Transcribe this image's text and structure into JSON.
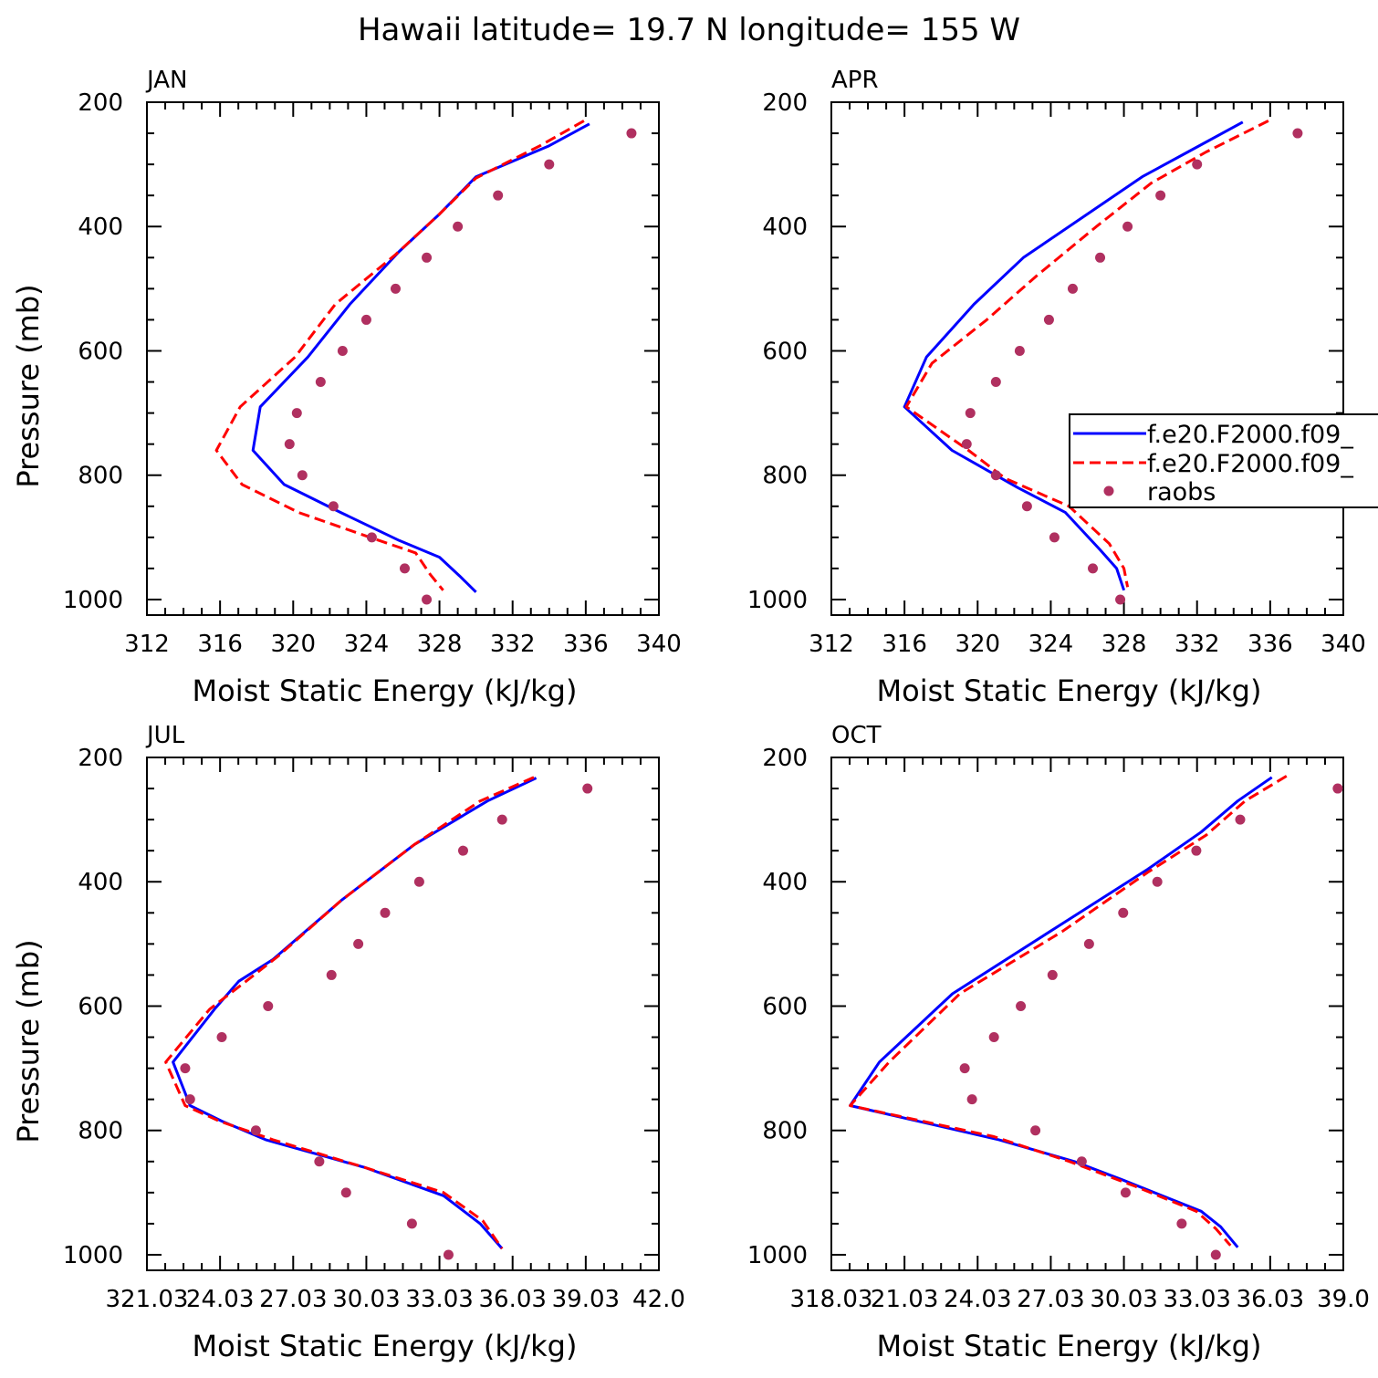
{
  "figure": {
    "title": "Hawaii  latitude= 19.7 N longitude= 155 W"
  },
  "legend": {
    "entries": [
      {
        "label": "f.e20.F2000.f09_",
        "style": "solid",
        "color": "#0000ff"
      },
      {
        "label": "f.e20.F2000.f09_",
        "style": "dashed",
        "color": "#ff0000"
      },
      {
        "label": "raobs",
        "style": "dot",
        "color": "#b03060"
      }
    ]
  },
  "chart_data": [
    {
      "type": "line",
      "title": "JAN",
      "xlabel": "Moist Static Energy (kJ/kg)",
      "ylabel": "Pressure (mb)",
      "xlim": [
        312,
        340
      ],
      "ylim": [
        1025,
        200
      ],
      "xticks": [
        "312",
        "316",
        "320",
        "324",
        "328",
        "332",
        "336",
        "340"
      ],
      "yticks": [
        "200",
        "400",
        "600",
        "800",
        "1000"
      ],
      "series": [
        {
          "name": "f.e20.F2000.f09_",
          "style": "solid",
          "color": "#0000ff",
          "x": [
            336.2,
            334.0,
            330.0,
            328.0,
            325.8,
            323.1,
            320.8,
            318.2,
            317.8,
            319.5,
            322.6,
            325.8,
            328.0,
            329.1,
            330.0
          ],
          "y": [
            235,
            270,
            320,
            380,
            440,
            525,
            610,
            690,
            760,
            815,
            860,
            905,
            932,
            962,
            988
          ]
        },
        {
          "name": "f.e20.F2000.f09_",
          "style": "dashed",
          "color": "#ff0000",
          "x": [
            335.9,
            333.5,
            330.0,
            328.0,
            325.6,
            322.3,
            320.1,
            317.1,
            315.8,
            317.2,
            320.3,
            324.2,
            326.7,
            327.5,
            328.2
          ],
          "y": [
            230,
            270,
            322,
            380,
            445,
            525,
            610,
            690,
            760,
            815,
            860,
            900,
            925,
            960,
            985
          ]
        },
        {
          "name": "raobs",
          "style": "dot",
          "color": "#b03060",
          "x": [
            338.5,
            334.0,
            331.2,
            329.0,
            327.3,
            325.6,
            324.0,
            322.7,
            321.5,
            320.2,
            319.8,
            320.5,
            322.2,
            324.3,
            326.1,
            327.3
          ],
          "y": [
            250,
            300,
            350,
            400,
            450,
            500,
            550,
            600,
            650,
            700,
            750,
            800,
            850,
            900,
            950,
            1000
          ]
        }
      ]
    },
    {
      "type": "line",
      "title": "APR",
      "xlabel": "Moist Static Energy (kJ/kg)",
      "ylabel": "",
      "xlim": [
        312,
        340
      ],
      "ylim": [
        1025,
        200
      ],
      "xticks": [
        "312",
        "316",
        "320",
        "324",
        "328",
        "332",
        "336",
        "340"
      ],
      "yticks": [
        "200",
        "400",
        "600",
        "800",
        "1000"
      ],
      "series": [
        {
          "name": "f.e20.F2000.f09_",
          "style": "solid",
          "color": "#0000ff",
          "x": [
            334.5,
            331.5,
            329.0,
            326.0,
            322.5,
            319.8,
            317.2,
            316.0,
            318.6,
            322.2,
            324.8,
            326.7,
            327.6,
            328.0
          ],
          "y": [
            232,
            280,
            320,
            380,
            450,
            525,
            610,
            690,
            760,
            820,
            860,
            920,
            950,
            985
          ]
        },
        {
          "name": "f.e20.F2000.f09_",
          "style": "dashed",
          "color": "#ff0000",
          "x": [
            335.9,
            332.5,
            329.5,
            326.5,
            323.2,
            320.5,
            317.5,
            316.1,
            319.5,
            321.5,
            325.0,
            327.2,
            328.0,
            328.2
          ],
          "y": [
            230,
            280,
            330,
            400,
            480,
            550,
            620,
            690,
            760,
            805,
            850,
            910,
            950,
            980
          ]
        },
        {
          "name": "raobs",
          "style": "dot",
          "color": "#b03060",
          "x": [
            337.5,
            332.0,
            330.0,
            328.2,
            326.7,
            325.2,
            323.9,
            322.3,
            321.0,
            319.6,
            319.4,
            321.0,
            322.7,
            324.2,
            326.3,
            327.8
          ],
          "y": [
            250,
            300,
            350,
            400,
            450,
            500,
            550,
            600,
            650,
            700,
            750,
            800,
            850,
            900,
            950,
            1000
          ]
        }
      ]
    },
    {
      "type": "line",
      "title": "JUL",
      "xlabel": "Moist Static Energy (kJ/kg)",
      "ylabel": "Pressure (mb)",
      "xlim": [
        321.03,
        342.03
      ],
      "ylim": [
        1025,
        200
      ],
      "xticks": [
        "321.03",
        "24.03",
        "27.03",
        "30.03",
        "33.03",
        "36.03",
        "39.03",
        "42.0"
      ],
      "yticks": [
        "200",
        "400",
        "600",
        "800",
        "1000"
      ],
      "series": [
        {
          "name": "f.e20.F2000.f09_",
          "style": "solid",
          "color": "#0000ff",
          "x": [
            337.0,
            335.0,
            332.0,
            329.0,
            326.2,
            324.8,
            323.8,
            322.1,
            322.8,
            324.1,
            325.9,
            330.0,
            333.2,
            334.7,
            335.6
          ],
          "y": [
            233,
            270,
            340,
            430,
            525,
            560,
            605,
            690,
            760,
            785,
            815,
            860,
            905,
            950,
            990
          ]
        },
        {
          "name": "f.e20.F2000.f09_",
          "style": "dashed",
          "color": "#ff0000",
          "x": [
            336.9,
            334.7,
            332.0,
            329.0,
            326.4,
            325.1,
            323.6,
            321.8,
            322.6,
            324.0,
            326.2,
            330.0,
            333.2,
            334.8,
            335.6
          ],
          "y": [
            232,
            270,
            340,
            430,
            520,
            560,
            605,
            690,
            760,
            785,
            815,
            860,
            900,
            945,
            990
          ]
        },
        {
          "name": "raobs",
          "style": "dot",
          "color": "#b03060",
          "x": [
            339.1,
            335.6,
            334.0,
            332.2,
            330.8,
            329.7,
            328.6,
            326.0,
            324.1,
            322.6,
            322.8,
            325.5,
            328.1,
            329.2,
            331.9,
            333.4
          ],
          "y": [
            250,
            300,
            350,
            400,
            450,
            500,
            550,
            600,
            650,
            700,
            750,
            800,
            850,
            900,
            950,
            1000
          ]
        }
      ]
    },
    {
      "type": "line",
      "title": "OCT",
      "xlabel": "Moist Static Energy (kJ/kg)",
      "ylabel": "",
      "xlim": [
        318.03,
        339.03
      ],
      "ylim": [
        1025,
        200
      ],
      "xticks": [
        "318.03",
        "21.03",
        "24.03",
        "27.03",
        "30.03",
        "33.03",
        "36.03",
        "39.0"
      ],
      "yticks": [
        "200",
        "400",
        "600",
        "800",
        "1000"
      ],
      "series": [
        {
          "name": "f.e20.F2000.f09_",
          "style": "solid",
          "color": "#0000ff",
          "x": [
            336.1,
            334.7,
            333.2,
            331.0,
            327.0,
            323.0,
            320.0,
            318.8,
            324.9,
            328.0,
            330.0,
            333.2,
            334.0,
            334.7
          ],
          "y": [
            232,
            270,
            320,
            380,
            480,
            580,
            690,
            760,
            815,
            850,
            880,
            930,
            955,
            988
          ]
        },
        {
          "name": "f.e20.F2000.f09_",
          "style": "dashed",
          "color": "#ff0000",
          "x": [
            336.7,
            335.0,
            333.4,
            331.0,
            327.5,
            323.3,
            320.4,
            318.8,
            324.7,
            327.8,
            330.5,
            333.0,
            333.8,
            334.4
          ],
          "y": [
            230,
            270,
            325,
            385,
            480,
            580,
            690,
            760,
            810,
            850,
            890,
            930,
            958,
            985
          ]
        },
        {
          "name": "raobs",
          "style": "dot",
          "color": "#b03060",
          "x": [
            338.8,
            334.8,
            333.0,
            331.4,
            330.0,
            328.6,
            327.1,
            325.8,
            324.7,
            323.5,
            323.8,
            326.4,
            328.3,
            330.1,
            332.4,
            333.8
          ],
          "y": [
            250,
            300,
            350,
            400,
            450,
            500,
            550,
            600,
            650,
            700,
            750,
            800,
            850,
            900,
            950,
            1000
          ]
        }
      ]
    }
  ]
}
